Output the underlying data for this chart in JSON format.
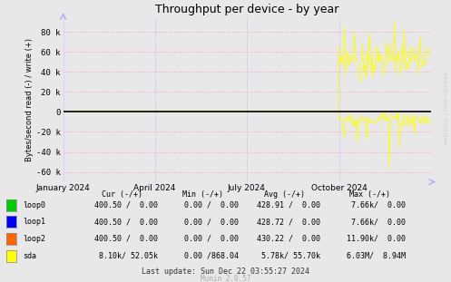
{
  "title": "Throughput per device - by year",
  "ylabel": "Bytes/second read (-) / write (+)",
  "background_color": "#e8e8e8",
  "plot_bg_color": "#e8e8e8",
  "grid_color_h": "#ff9999",
  "grid_color_v": "#aaaaff",
  "ylim": [
    -70000,
    95000
  ],
  "yticks": [
    -60000,
    -40000,
    -20000,
    0,
    20000,
    40000,
    60000,
    80000
  ],
  "ytick_labels": [
    "-60 k",
    "-40 k",
    "-20 k",
    "0",
    "20 k",
    "40 k",
    "60 k",
    "80 k"
  ],
  "xtick_positions": [
    0,
    91,
    182,
    274
  ],
  "xtick_labels": [
    "January 2024",
    "April 2024",
    "July 2024",
    "October 2024"
  ],
  "zero_line_color": "#000000",
  "watermark": "RRDTOOL / TOBI OETIKER",
  "munin_text": "Munin 2.0.57",
  "legend_entries": [
    {
      "label": "loop0",
      "color": "#00cc00"
    },
    {
      "label": "loop1",
      "color": "#0000ff"
    },
    {
      "label": "loop2",
      "color": "#ff6600"
    },
    {
      "label": "sda",
      "color": "#ffff00"
    }
  ],
  "col_headers": [
    "Cur (-/+)",
    "Min (-/+)",
    "Avg (-/+)",
    "Max (-/+)"
  ],
  "legend_data": [
    [
      "loop0",
      "400.50 /  0.00",
      "0.00 /  0.00",
      "428.91 /  0.00",
      "7.66k/  0.00"
    ],
    [
      "loop1",
      "400.50 /  0.00",
      "0.00 /  0.00",
      "428.72 /  0.00",
      "7.66k/  0.00"
    ],
    [
      "loop2",
      "400.50 /  0.00",
      "0.00 /  0.00",
      "430.22 /  0.00",
      "11.90k/  0.00"
    ],
    [
      "sda",
      "8.10k/ 52.05k",
      "0.00 /868.04",
      "5.78k/ 55.70k",
      "6.03M/  8.94M"
    ]
  ],
  "last_update": "Last update: Sun Dec 22 03:55:27 2024",
  "sda_activity_start": 274,
  "n_points": 366
}
